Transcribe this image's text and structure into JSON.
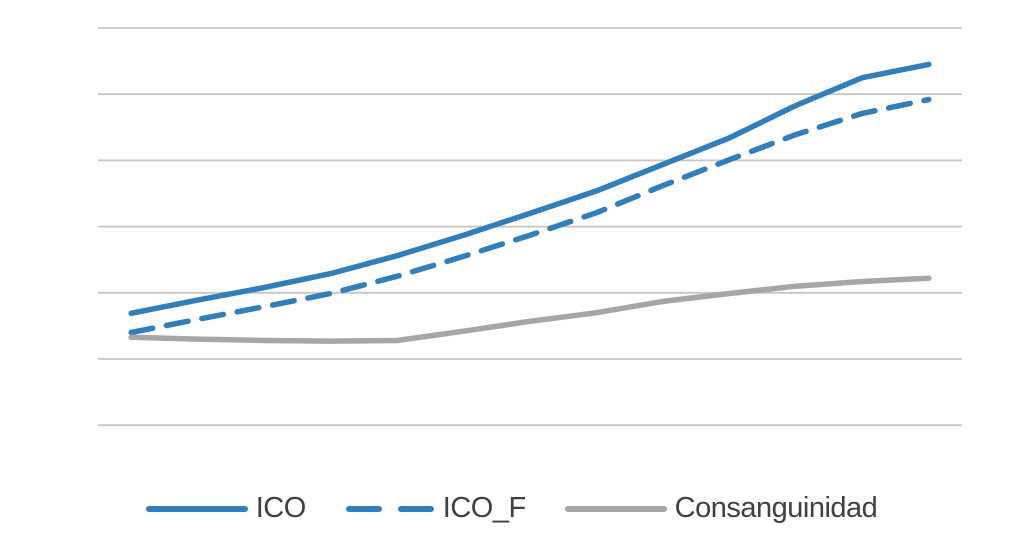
{
  "colors": {
    "blue": "#317EBC",
    "gray": "#A6A6A6",
    "gridline": "#C6C6C6",
    "text": "#404040",
    "background": "#FFFFFF"
  },
  "chart_data": {
    "type": "line",
    "title": "",
    "xlabel": "",
    "ylabel": "",
    "x_tick_labels_visible": false,
    "y_tick_labels_visible": false,
    "num_points": 13,
    "y_axis": {
      "unit": "gridline-units (bottom gridline = 0, top gridline = 6; no numeric labels shown)",
      "ylim": [
        0,
        6
      ],
      "gridline_count": 7,
      "grid": true
    },
    "legend_position": "bottom-center",
    "series": [
      {
        "name": "ICO",
        "style": "solid",
        "color": "#317EBC",
        "values": [
          1.69,
          1.89,
          2.08,
          2.29,
          2.56,
          2.87,
          3.2,
          3.54,
          3.94,
          4.34,
          4.83,
          5.25,
          5.45
        ]
      },
      {
        "name": "ICO_F",
        "style": "dashed",
        "color": "#317EBC",
        "values": [
          1.4,
          1.6,
          1.79,
          1.99,
          2.25,
          2.55,
          2.87,
          3.21,
          3.62,
          4.01,
          4.39,
          4.71,
          4.92
        ]
      },
      {
        "name": "Consanguinidad",
        "style": "solid",
        "color": "#A6A6A6",
        "values": [
          1.33,
          1.3,
          1.28,
          1.27,
          1.28,
          1.42,
          1.57,
          1.7,
          1.87,
          1.99,
          2.1,
          2.17,
          2.22
        ]
      }
    ]
  }
}
